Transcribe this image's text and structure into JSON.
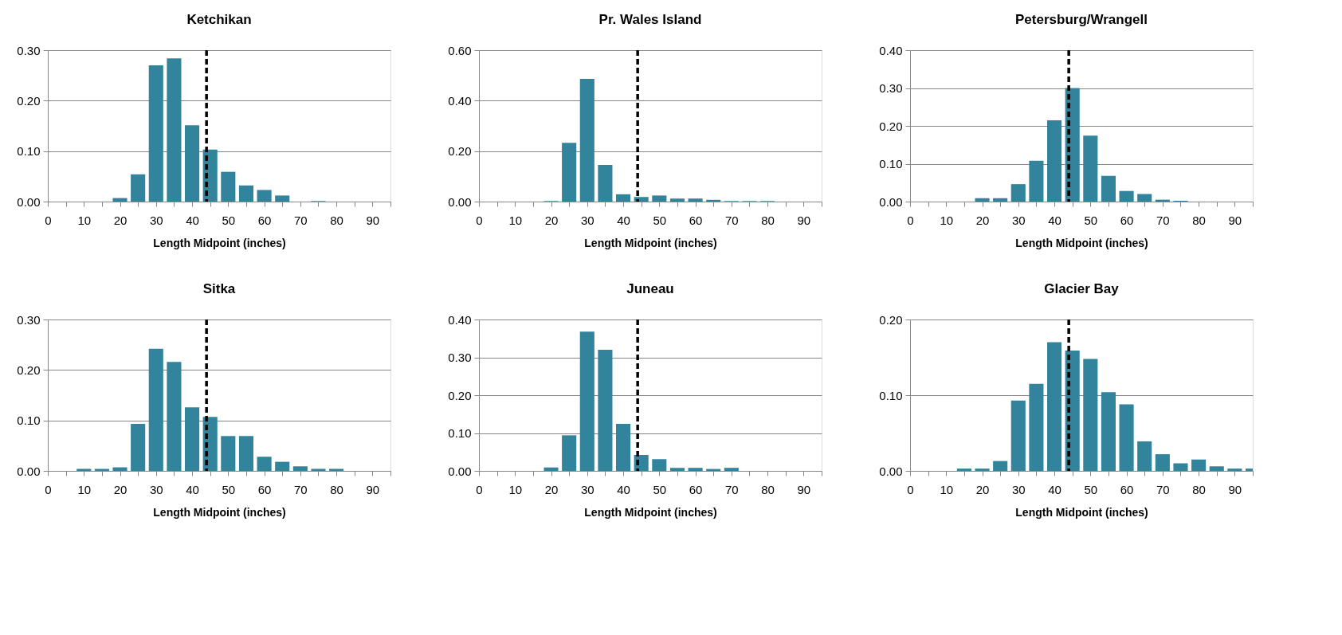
{
  "chart_data": [
    {
      "type": "bar",
      "title": "Ketchikan",
      "xlabel": "Length Midpoint (inches)",
      "color": "#31849b",
      "grid": "y",
      "x": [
        20,
        25,
        30,
        35,
        40,
        45,
        50,
        55,
        60,
        65,
        75
      ],
      "values": [
        0.007,
        0.054,
        0.27,
        0.284,
        0.151,
        0.103,
        0.059,
        0.032,
        0.023,
        0.012,
        0.001
      ],
      "xlim": [
        0,
        95
      ],
      "xticks": [
        0,
        {
          "value": 5,
          "label": null
        },
        10,
        {
          "value": 15,
          "label": null
        },
        20,
        {
          "value": 25,
          "label": null
        },
        30,
        {
          "value": 35,
          "label": null
        },
        40,
        {
          "value": 45,
          "label": null
        },
        50,
        {
          "value": 55,
          "label": null
        },
        60,
        {
          "value": 65,
          "label": null
        },
        70,
        {
          "value": 75,
          "label": null
        },
        80,
        {
          "value": 85,
          "label": null
        },
        90,
        {
          "value": 95,
          "label": null
        }
      ],
      "ylim": [
        0,
        0.3
      ],
      "yticks": [
        {
          "value": 0,
          "label": "0.00"
        },
        {
          "value": 0.1,
          "label": "0.10"
        },
        {
          "value": 0.2,
          "label": "0.20"
        },
        {
          "value": 0.3,
          "label": "0.30"
        }
      ],
      "ref_lines": [
        {
          "axis": "x",
          "value": 44,
          "color": "#000000",
          "line_style": "dashed"
        }
      ]
    },
    {
      "type": "bar",
      "title": "Pr. Wales Island",
      "xlabel": "Length Midpoint (inches)",
      "color": "#31849b",
      "grid": "y",
      "x": [
        20,
        25,
        30,
        35,
        40,
        45,
        50,
        55,
        60,
        65,
        70,
        75,
        80
      ],
      "values": [
        0.002,
        0.233,
        0.486,
        0.145,
        0.029,
        0.018,
        0.024,
        0.012,
        0.012,
        0.007,
        0.002,
        0.002,
        0.002
      ],
      "xlim": [
        0,
        95
      ],
      "xticks": [
        0,
        {
          "value": 5,
          "label": null
        },
        10,
        {
          "value": 15,
          "label": null
        },
        20,
        {
          "value": 25,
          "label": null
        },
        30,
        {
          "value": 35,
          "label": null
        },
        40,
        {
          "value": 45,
          "label": null
        },
        50,
        {
          "value": 55,
          "label": null
        },
        60,
        {
          "value": 65,
          "label": null
        },
        70,
        {
          "value": 75,
          "label": null
        },
        80,
        {
          "value": 85,
          "label": null
        },
        90,
        {
          "value": 95,
          "label": null
        }
      ],
      "ylim": [
        0,
        0.6
      ],
      "yticks": [
        {
          "value": 0,
          "label": "0.00"
        },
        {
          "value": 0.2,
          "label": "0.20"
        },
        {
          "value": 0.4,
          "label": "0.40"
        },
        {
          "value": 0.6,
          "label": "0.60"
        }
      ],
      "ref_lines": [
        {
          "axis": "x",
          "value": 44,
          "color": "#000000",
          "line_style": "dashed"
        }
      ]
    },
    {
      "type": "bar",
      "title": "Petersburg/Wrangell",
      "xlabel": "Length Midpoint (inches)",
      "color": "#31849b",
      "grid": "y",
      "x": [
        20,
        25,
        30,
        35,
        40,
        45,
        50,
        55,
        60,
        65,
        70,
        75
      ],
      "values": [
        0.009,
        0.009,
        0.046,
        0.108,
        0.215,
        0.3,
        0.174,
        0.068,
        0.028,
        0.02,
        0.005,
        0.002
      ],
      "xlim": [
        0,
        95
      ],
      "xticks": [
        0,
        {
          "value": 5,
          "label": null
        },
        10,
        {
          "value": 15,
          "label": null
        },
        20,
        {
          "value": 25,
          "label": null
        },
        30,
        {
          "value": 35,
          "label": null
        },
        40,
        {
          "value": 45,
          "label": null
        },
        50,
        {
          "value": 55,
          "label": null
        },
        60,
        {
          "value": 65,
          "label": null
        },
        70,
        {
          "value": 75,
          "label": null
        },
        80,
        {
          "value": 85,
          "label": null
        },
        90,
        {
          "value": 95,
          "label": null
        }
      ],
      "ylim": [
        0,
        0.4
      ],
      "yticks": [
        {
          "value": 0,
          "label": "0.00"
        },
        {
          "value": 0.1,
          "label": "0.10"
        },
        {
          "value": 0.2,
          "label": "0.20"
        },
        {
          "value": 0.3,
          "label": "0.30"
        },
        {
          "value": 0.4,
          "label": "0.40"
        }
      ],
      "ref_lines": [
        {
          "axis": "x",
          "value": 44,
          "color": "#000000",
          "line_style": "dashed"
        }
      ]
    },
    {
      "type": "bar",
      "title": "Sitka",
      "xlabel": "Length Midpoint (inches)",
      "color": "#31849b",
      "grid": "y",
      "x": [
        10,
        15,
        20,
        25,
        30,
        35,
        40,
        45,
        50,
        55,
        60,
        65,
        70,
        75,
        80
      ],
      "values": [
        0.004,
        0.004,
        0.007,
        0.093,
        0.242,
        0.216,
        0.126,
        0.107,
        0.069,
        0.069,
        0.028,
        0.018,
        0.009,
        0.004,
        0.004
      ],
      "xlim": [
        0,
        95
      ],
      "xticks": [
        0,
        {
          "value": 5,
          "label": null
        },
        10,
        {
          "value": 15,
          "label": null
        },
        20,
        {
          "value": 25,
          "label": null
        },
        30,
        {
          "value": 35,
          "label": null
        },
        40,
        {
          "value": 45,
          "label": null
        },
        50,
        {
          "value": 55,
          "label": null
        },
        60,
        {
          "value": 65,
          "label": null
        },
        70,
        {
          "value": 75,
          "label": null
        },
        80,
        {
          "value": 85,
          "label": null
        },
        90,
        {
          "value": 95,
          "label": null
        }
      ],
      "ylim": [
        0,
        0.3
      ],
      "yticks": [
        {
          "value": 0,
          "label": "0.00"
        },
        {
          "value": 0.1,
          "label": "0.10"
        },
        {
          "value": 0.2,
          "label": "0.20"
        },
        {
          "value": 0.3,
          "label": "0.30"
        }
      ],
      "ref_lines": [
        {
          "axis": "x",
          "value": 44,
          "color": "#000000",
          "line_style": "dashed"
        }
      ]
    },
    {
      "type": "bar",
      "title": "Juneau",
      "xlabel": "Length Midpoint (inches)",
      "color": "#31849b",
      "grid": "y",
      "x": [
        20,
        25,
        30,
        35,
        40,
        45,
        50,
        55,
        60,
        65,
        70
      ],
      "values": [
        0.009,
        0.094,
        0.368,
        0.32,
        0.124,
        0.042,
        0.031,
        0.008,
        0.008,
        0.005,
        0.008
      ],
      "xlim": [
        0,
        95
      ],
      "xticks": [
        0,
        {
          "value": 5,
          "label": null
        },
        10,
        {
          "value": 15,
          "label": null
        },
        20,
        {
          "value": 25,
          "label": null
        },
        30,
        {
          "value": 35,
          "label": null
        },
        40,
        {
          "value": 45,
          "label": null
        },
        50,
        {
          "value": 55,
          "label": null
        },
        60,
        {
          "value": 65,
          "label": null
        },
        70,
        {
          "value": 75,
          "label": null
        },
        80,
        {
          "value": 85,
          "label": null
        },
        90,
        {
          "value": 95,
          "label": null
        }
      ],
      "ylim": [
        0,
        0.4
      ],
      "yticks": [
        {
          "value": 0,
          "label": "0.00"
        },
        {
          "value": 0.1,
          "label": "0.10"
        },
        {
          "value": 0.2,
          "label": "0.20"
        },
        {
          "value": 0.3,
          "label": "0.30"
        },
        {
          "value": 0.4,
          "label": "0.40"
        }
      ],
      "ref_lines": [
        {
          "axis": "x",
          "value": 44,
          "color": "#000000",
          "line_style": "dashed"
        }
      ]
    },
    {
      "type": "bar",
      "title": "Glacier Bay",
      "xlabel": "Length Midpoint (inches)",
      "color": "#31849b",
      "grid": "y",
      "x": [
        15,
        20,
        25,
        30,
        35,
        40,
        45,
        50,
        55,
        60,
        65,
        70,
        75,
        80,
        85,
        90,
        95
      ],
      "values": [
        0.003,
        0.003,
        0.013,
        0.093,
        0.115,
        0.17,
        0.159,
        0.148,
        0.104,
        0.088,
        0.039,
        0.022,
        0.01,
        0.015,
        0.006,
        0.003,
        0.003
      ],
      "xlim": [
        0,
        95
      ],
      "xticks": [
        0,
        {
          "value": 5,
          "label": null
        },
        10,
        {
          "value": 15,
          "label": null
        },
        20,
        {
          "value": 25,
          "label": null
        },
        30,
        {
          "value": 35,
          "label": null
        },
        40,
        {
          "value": 45,
          "label": null
        },
        50,
        {
          "value": 55,
          "label": null
        },
        60,
        {
          "value": 65,
          "label": null
        },
        70,
        {
          "value": 75,
          "label": null
        },
        80,
        {
          "value": 85,
          "label": null
        },
        90,
        {
          "value": 95,
          "label": null
        }
      ],
      "ylim": [
        0,
        0.2
      ],
      "yticks": [
        {
          "value": 0,
          "label": "0.00"
        },
        {
          "value": 0.1,
          "label": "0.10"
        },
        {
          "value": 0.2,
          "label": "0.20"
        }
      ],
      "ref_lines": [
        {
          "axis": "x",
          "value": 44,
          "color": "#000000",
          "line_style": "dashed"
        }
      ]
    }
  ]
}
